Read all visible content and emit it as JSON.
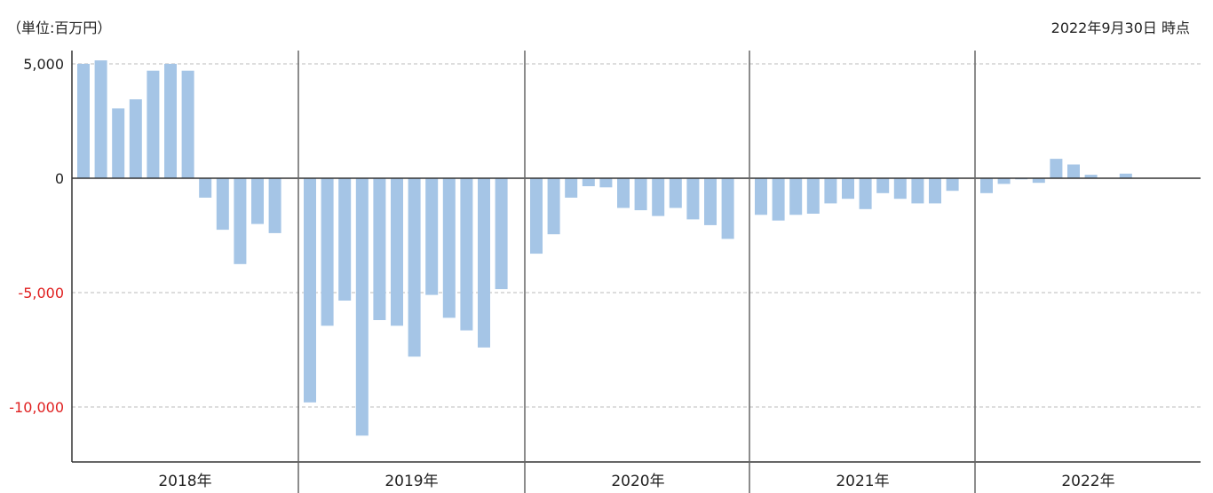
{
  "header": {
    "unit_label": "（単位:百万円）",
    "as_of_label": "2022年9月30日 時点"
  },
  "colors": {
    "bar": "#a5c5e6",
    "axis": "#333333",
    "grid": "#bbbbbb",
    "negative_tick": "#e02020",
    "positive_tick": "#222222"
  },
  "chart_data": {
    "type": "bar",
    "title": "",
    "xlabel": "",
    "ylabel": "",
    "ylim": [
      -12500,
      5500
    ],
    "y_ticks": [
      5000,
      0,
      -5000,
      -10000
    ],
    "y_tick_labels": [
      "5,000",
      "0",
      "-5,000",
      "-10,000"
    ],
    "grid": "horizontal dashed",
    "groups": [
      {
        "label": "2018年",
        "values": [
          5000,
          5150,
          3050,
          3450,
          4700,
          5000,
          4700,
          -850,
          -2250,
          -3750,
          -2000,
          -2400
        ]
      },
      {
        "label": "2019年",
        "values": [
          -9800,
          -6450,
          -5350,
          -11250,
          -6200,
          -6450,
          -7800,
          -5100,
          -6100,
          -6650,
          -7400,
          -4850
        ]
      },
      {
        "label": "2020年",
        "values": [
          -3300,
          -2450,
          -850,
          -350,
          -400,
          -1300,
          -1400,
          -1650,
          -1300,
          -1800,
          -2050,
          -2650
        ]
      },
      {
        "label": "2021年",
        "values": [
          -1600,
          -1850,
          -1600,
          -1550,
          -1100,
          -900,
          -1350,
          -650,
          -900,
          -1100,
          -1100,
          -550
        ]
      },
      {
        "label": "2022年",
        "values": [
          -650,
          -250,
          -50,
          -200,
          850,
          600,
          150,
          0,
          200
        ]
      }
    ]
  }
}
